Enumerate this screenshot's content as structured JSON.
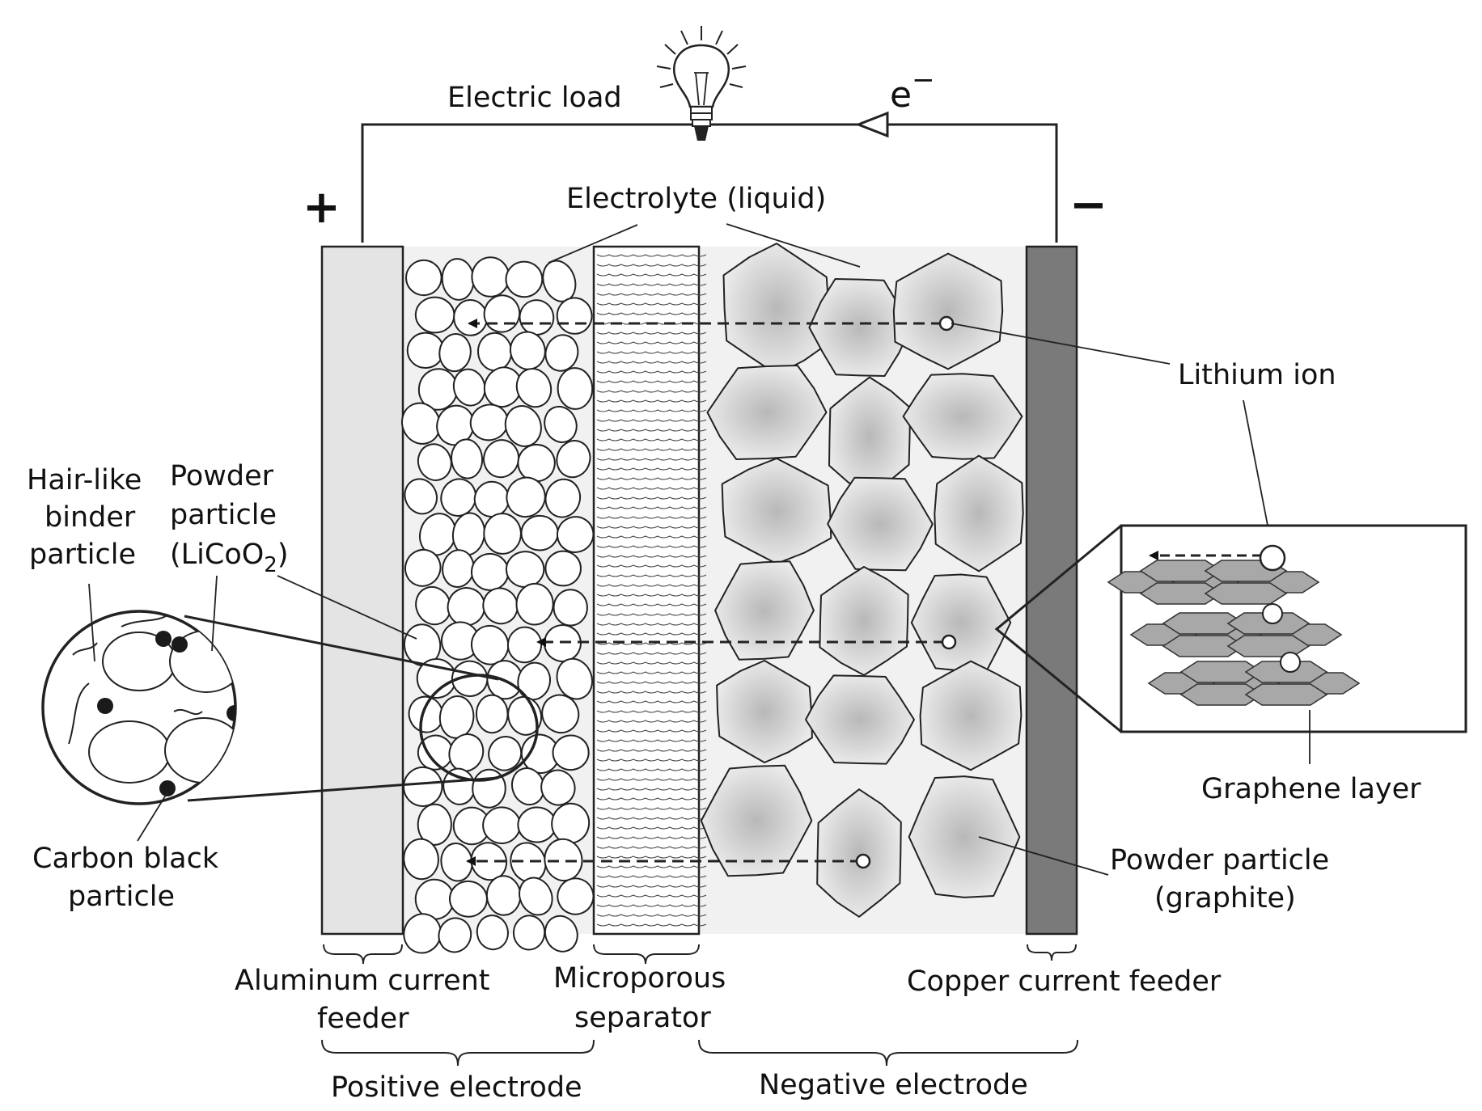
{
  "labels": {
    "electric_load": "Electric load",
    "electron": "e",
    "electron_charge": "−",
    "plus": "+",
    "minus": "−",
    "electrolyte": "Electrolyte (liquid)",
    "lithium_ion": "Lithium ion",
    "graphene_layer": "Graphene layer",
    "powder_graphite_1": "Powder particle",
    "powder_graphite_2": "(graphite)",
    "hair_binder_1": "Hair-like",
    "hair_binder_2": "binder",
    "hair_binder_3": "particle",
    "powder_lco_1": "Powder",
    "powder_lco_2": "particle",
    "powder_lco_3a": "(LiCoO",
    "powder_lco_3b": "2",
    "powder_lco_3c": ")",
    "carbon_black_1": "Carbon black",
    "carbon_black_2": "particle",
    "aluminum_1": "Aluminum current",
    "aluminum_2": "feeder",
    "separator_1": "Microporous",
    "separator_2": "separator",
    "copper": "Copper current feeder",
    "positive_electrode": "Positive electrode",
    "negative_electrode": "Negative electrode"
  },
  "colors": {
    "line": "#222222",
    "aluminum_feeder": "#e4e4e4",
    "copper_feeder": "#7a7a7a",
    "electrolyte_fill": "#f1f1f1",
    "graphite_center": "#bdbdbd",
    "graphite_edge": "#ececec",
    "graphene_fill": "#a8a8a8",
    "carbon_black": "#1a1a1a"
  },
  "icons": {
    "bulb": "light-bulb-icon",
    "arrow": "triangle-arrow-icon"
  }
}
